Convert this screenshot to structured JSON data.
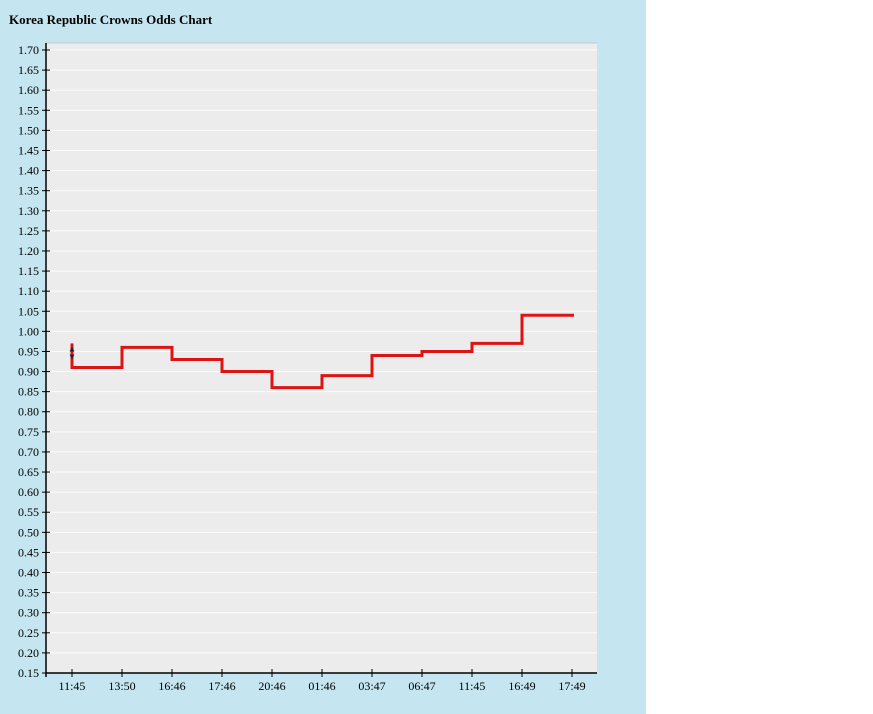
{
  "title": "Korea Republic Crowns Odds Chart",
  "colors": {
    "panel_bg": "#c5e6f0",
    "page_bg": "#ffffff",
    "plot_bg": "#ececec",
    "gridline": "#fbfbfb",
    "axis": "#000000",
    "line": "#dc1414",
    "open_marker": "#26262a",
    "plot_top_border": "#c8c8c8",
    "label": "#000000"
  },
  "chart_data": {
    "type": "line",
    "subtype": "step-after",
    "title": "Korea Republic Crowns Odds Chart",
    "series": [
      {
        "name": "Crowns odds",
        "color": "#dc1414",
        "values": [
          0.91,
          0.96,
          0.93,
          0.9,
          0.86,
          0.89,
          0.94,
          0.95,
          0.97,
          1.04,
          1.04
        ]
      }
    ],
    "x_tick_labels": [
      "11:45",
      "13:50",
      "16:46",
      "17:46",
      "20:46",
      "01:46",
      "03:47",
      "06:47",
      "11:45",
      "16:49",
      "17:49"
    ],
    "y_axis": {
      "min": 0.15,
      "max": 1.7,
      "step": 0.05,
      "decimals": 2
    },
    "open_marker": {
      "at_x_index": 0,
      "high": 0.97,
      "low": 0.91,
      "arrows": [
        {
          "dir": "up",
          "value": 0.955
        },
        {
          "dir": "down",
          "value": 0.9375
        }
      ]
    },
    "grid": true,
    "legend": false,
    "xlabel": "",
    "ylabel": ""
  }
}
